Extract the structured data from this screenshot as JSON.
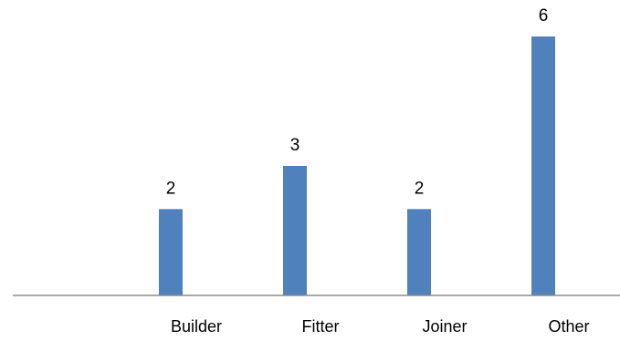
{
  "chart_data": {
    "type": "bar",
    "categories": [
      "Builder",
      "Fitter",
      "Joiner",
      "Other"
    ],
    "values": [
      2,
      3,
      2,
      6
    ],
    "data_labels": [
      "2",
      "3",
      "2",
      "6"
    ],
    "title": "",
    "xlabel": "",
    "ylabel": "",
    "ylim": [
      0,
      6
    ],
    "grid": false,
    "legend": "none",
    "colors": {
      "bar": "#4f81bd",
      "axis": "#8c8c8c"
    }
  }
}
